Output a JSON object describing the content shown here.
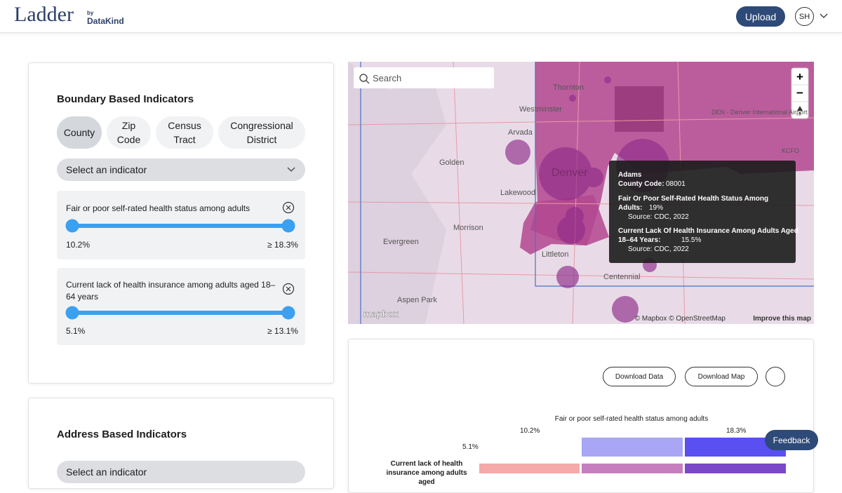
{
  "header": {
    "logo": "Ladder",
    "by": "by",
    "brand": "DataKind",
    "upload": "Upload",
    "avatar": "SH"
  },
  "boundary": {
    "title": "Boundary Based Indicators",
    "tabs": [
      "County",
      "Zip Code",
      "Census Tract",
      "Congressional District"
    ],
    "select": "Select an indicator",
    "filters": [
      {
        "label": "Fair or poor self-rated health status among adults",
        "min": "10.2%",
        "max": "≥ 18.3%"
      },
      {
        "label": "Current lack of health insurance among adults aged 18–64 years",
        "min": "5.1%",
        "max": "≥ 13.1%"
      }
    ]
  },
  "address": {
    "title": "Address Based Indicators",
    "select": "Select an indicator"
  },
  "map": {
    "search": "Search",
    "places": [
      "Thornton",
      "Westminster",
      "Arvada",
      "Golden",
      "Denver",
      "Lakewood",
      "Morrison",
      "Evergreen",
      "Littleton",
      "Centennial",
      "Aspen Park",
      "DEN - Denver International Airport",
      "KCFO"
    ],
    "zoom_in": "+",
    "zoom_out": "−",
    "tooltip": {
      "name": "Adams",
      "code_label": "County Code:",
      "code": "08001",
      "indicator1": "Fair Or Poor Self-Rated Health Status Among Adults:",
      "value1": "19%",
      "source1": "Source: CDC, 2022",
      "indicator2": "Current Lack Of Health Insurance Among Adults Aged 18–64 Years:",
      "value2": "15.5%",
      "source2": "Source: CDC, 2022"
    },
    "logo": "mapbox",
    "attribution": "© Mapbox © OpenStreetMap",
    "improve": "Improve this map"
  },
  "legend": {
    "download_data": "Download Data",
    "download_map": "Download Map",
    "title": "Fair or poor self-rated health status among adults",
    "x_low": "10.2%",
    "x_high": "18.3%",
    "y_low": "5.1%",
    "row_label": "Current lack of health insurance among adults aged"
  },
  "feedback": "Feedback"
}
